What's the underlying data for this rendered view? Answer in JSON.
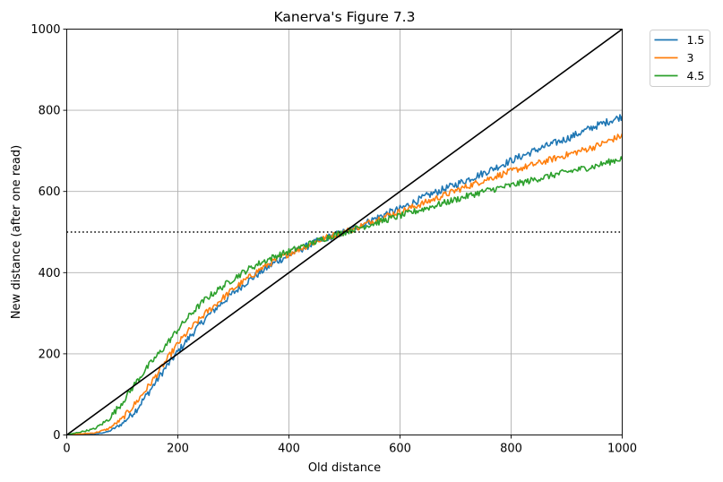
{
  "chart_data": {
    "type": "line",
    "title": "Kanerva's Figure 7.3",
    "xlabel": "Old distance",
    "ylabel": "New distance (after one read)",
    "xlim": [
      0,
      1000
    ],
    "ylim": [
      0,
      1000
    ],
    "xticks": [
      0,
      200,
      400,
      600,
      800,
      1000
    ],
    "yticks": [
      0,
      200,
      400,
      600,
      800,
      1000
    ],
    "xtick_labels": [
      "0",
      "200",
      "400",
      "600",
      "800",
      "1000"
    ],
    "ytick_labels": [
      "0",
      "200",
      "400",
      "600",
      "800",
      "1000"
    ],
    "grid": true,
    "legend_position": "outside-top-right",
    "series": [
      {
        "name": "1.5",
        "color": "#1f77b4",
        "noise": 9,
        "x": [
          0,
          50,
          75,
          100,
          125,
          150,
          175,
          200,
          225,
          250,
          275,
          300,
          325,
          350,
          375,
          400,
          425,
          450,
          475,
          500,
          525,
          550,
          575,
          600,
          650,
          700,
          750,
          800,
          850,
          900,
          950,
          1000
        ],
        "y": [
          0,
          2,
          8,
          28,
          62,
          110,
          160,
          205,
          248,
          288,
          320,
          350,
          378,
          402,
          425,
          443,
          460,
          476,
          489,
          500,
          513,
          530,
          545,
          557,
          590,
          617,
          645,
          676,
          705,
          730,
          760,
          785
        ]
      },
      {
        "name": "3",
        "color": "#ff7f0e",
        "noise": 8,
        "x": [
          0,
          50,
          75,
          100,
          125,
          150,
          175,
          200,
          225,
          250,
          275,
          300,
          325,
          350,
          375,
          400,
          425,
          450,
          475,
          500,
          525,
          550,
          575,
          600,
          650,
          700,
          750,
          800,
          850,
          900,
          950,
          1000
        ],
        "y": [
          0,
          5,
          15,
          40,
          80,
          125,
          175,
          225,
          265,
          300,
          330,
          360,
          385,
          410,
          430,
          447,
          462,
          477,
          490,
          500,
          512,
          527,
          540,
          550,
          575,
          602,
          627,
          650,
          670,
          690,
          710,
          738
        ]
      },
      {
        "name": "4.5",
        "color": "#2ca02c",
        "noise": 8,
        "x": [
          0,
          50,
          75,
          100,
          125,
          150,
          175,
          200,
          225,
          250,
          275,
          300,
          325,
          350,
          375,
          400,
          425,
          450,
          475,
          500,
          525,
          550,
          575,
          600,
          650,
          700,
          750,
          800,
          850,
          900,
          950,
          1000
        ],
        "y": [
          0,
          15,
          38,
          80,
          130,
          175,
          215,
          260,
          300,
          335,
          360,
          385,
          407,
          425,
          440,
          452,
          465,
          477,
          490,
          500,
          510,
          520,
          530,
          540,
          560,
          580,
          600,
          615,
          632,
          648,
          662,
          682
        ]
      }
    ],
    "reference_lines": [
      {
        "kind": "diagonal",
        "from": [
          0,
          0
        ],
        "to": [
          1000,
          1000
        ],
        "color": "#000000",
        "style": "solid"
      },
      {
        "kind": "horizontal",
        "y": 500,
        "color": "#000000",
        "style": "dotted"
      }
    ]
  }
}
